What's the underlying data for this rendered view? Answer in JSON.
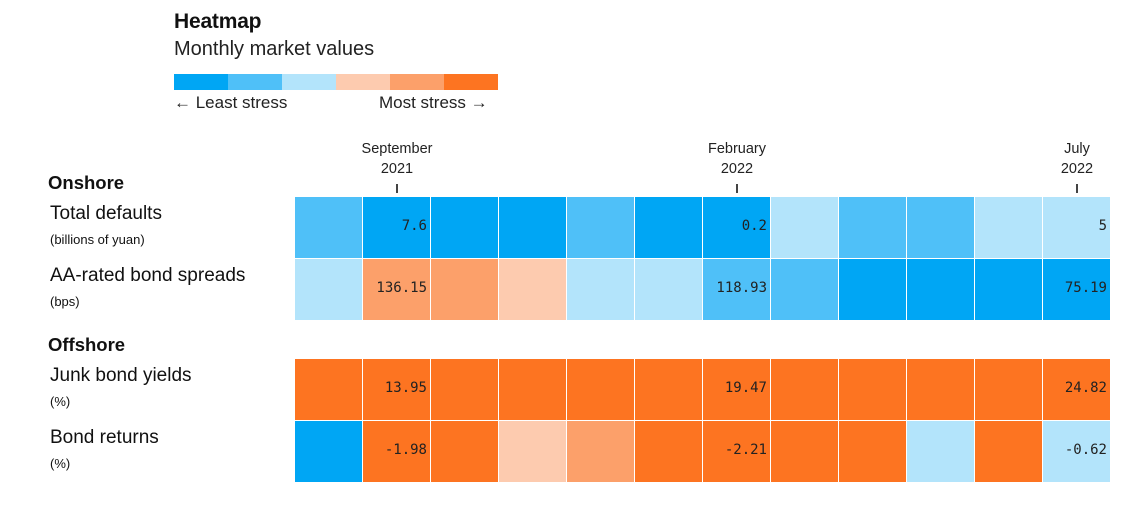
{
  "header": {
    "title": "Heatmap",
    "subtitle": "Monthly market values"
  },
  "legend": {
    "colors": [
      "#00a6f4",
      "#4fc0f8",
      "#b3e4fb",
      "#fdcbaf",
      "#fca06a",
      "#fd7421"
    ],
    "least_label": "← Least stress",
    "most_label": "Most stress →"
  },
  "x_axis": {
    "ticks": [
      {
        "month": "September",
        "year": "2021",
        "column": 1
      },
      {
        "month": "February",
        "year": "2022",
        "column": 6
      },
      {
        "month": "July",
        "year": "2022",
        "column": 11
      }
    ]
  },
  "sections": [
    {
      "name": "Onshore"
    },
    {
      "name": "Offshore"
    }
  ],
  "chart_data": {
    "type": "heatmap",
    "title": "Heatmap",
    "subtitle": "Monthly market values",
    "columns": 12,
    "rows": [
      {
        "section": 0,
        "label": "Total defaults",
        "unit": "(billions of yuan)",
        "stress_levels": [
          1,
          0,
          0,
          0,
          1,
          0,
          0,
          2,
          1,
          1,
          2,
          2
        ],
        "labeled_values": [
          {
            "column": 1,
            "value": "7.6"
          },
          {
            "column": 6,
            "value": "0.2"
          },
          {
            "column": 11,
            "value": "5"
          }
        ]
      },
      {
        "section": 0,
        "label": "AA-rated bond spreads",
        "unit": "(bps)",
        "stress_levels": [
          2,
          4,
          4,
          3,
          2,
          2,
          1,
          1,
          0,
          0,
          0,
          0
        ],
        "labeled_values": [
          {
            "column": 1,
            "value": "136.15"
          },
          {
            "column": 6,
            "value": "118.93"
          },
          {
            "column": 11,
            "value": "75.19"
          }
        ]
      },
      {
        "section": 1,
        "label": "Junk bond yields",
        "unit": "(%)",
        "stress_levels": [
          5,
          5,
          5,
          5,
          5,
          5,
          5,
          5,
          5,
          5,
          5,
          5
        ],
        "labeled_values": [
          {
            "column": 1,
            "value": "13.95"
          },
          {
            "column": 6,
            "value": "19.47"
          },
          {
            "column": 11,
            "value": "24.82"
          }
        ]
      },
      {
        "section": 1,
        "label": "Bond returns",
        "unit": "(%)",
        "stress_levels": [
          0,
          5,
          5,
          3,
          4,
          5,
          5,
          5,
          5,
          2,
          5,
          2
        ],
        "labeled_values": [
          {
            "column": 1,
            "value": "-1.98"
          },
          {
            "column": 6,
            "value": "-2.21"
          },
          {
            "column": 11,
            "value": "-0.62"
          }
        ]
      }
    ]
  }
}
